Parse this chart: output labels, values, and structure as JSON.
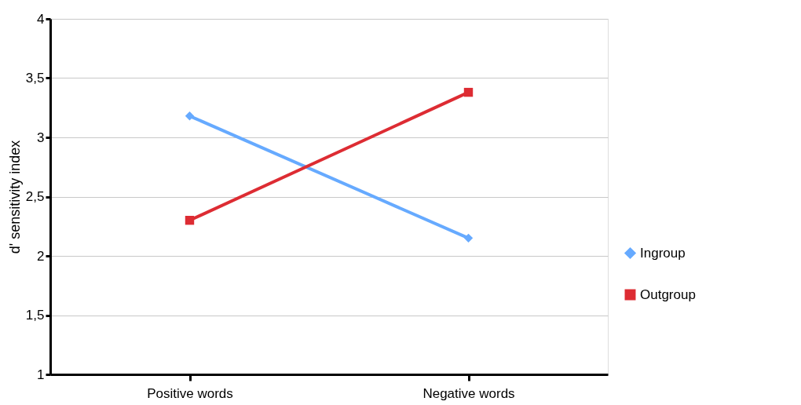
{
  "chart_data": {
    "type": "line",
    "ylabel": "d' sensitivity index",
    "categories": [
      "Positive words",
      "Negative words"
    ],
    "series": [
      {
        "name": "Ingroup",
        "color": "#66aaff",
        "marker": "diamond",
        "values": [
          3.18,
          2.15
        ]
      },
      {
        "name": "Outgroup",
        "color": "#dd2c33",
        "marker": "square",
        "values": [
          2.3,
          3.38
        ]
      }
    ],
    "ylim": [
      1,
      4
    ],
    "yticks": [
      1,
      {
        "value": 1.5,
        "label": "1,5"
      },
      2,
      {
        "value": 2.5,
        "label": "2,5"
      },
      3,
      {
        "value": 3.5,
        "label": "3,5"
      },
      4
    ],
    "grid": "y",
    "legend": "right",
    "line_style": "solid"
  }
}
